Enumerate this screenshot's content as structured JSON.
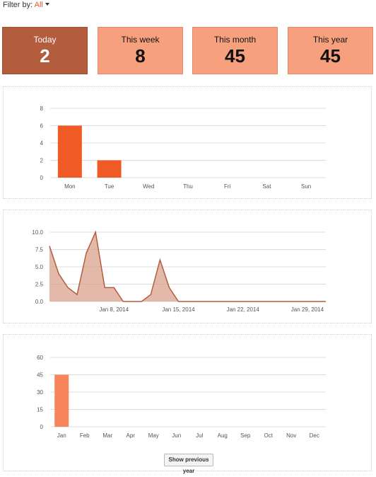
{
  "filter": {
    "label": "Filter by:",
    "value": "All"
  },
  "tiles": [
    {
      "label": "Today",
      "value": "2"
    },
    {
      "label": "This week",
      "value": "8"
    },
    {
      "label": "This month",
      "value": "45"
    },
    {
      "label": "This year",
      "value": "45"
    }
  ],
  "colors": {
    "active_tile": "#b35c3e",
    "tile": "#f7a07e",
    "week_bar": "#f05a24",
    "month_area": "#b35c3e",
    "year_bar": "#f7845a"
  },
  "button_label": "Show previous year",
  "chart_data": [
    {
      "type": "bar",
      "categories": [
        "Mon",
        "Tue",
        "Wed",
        "Thu",
        "Fri",
        "Sat",
        "Sun"
      ],
      "values": [
        6,
        2,
        0,
        0,
        0,
        0,
        0
      ],
      "yticks": [
        0,
        2,
        4,
        6,
        8
      ],
      "ylim": [
        0,
        8
      ],
      "grid": true
    },
    {
      "type": "area",
      "x_start": "Jan 1, 2014",
      "values": [
        8,
        4,
        2,
        1,
        7,
        10,
        2,
        2,
        0,
        0,
        0,
        1,
        6,
        2,
        0,
        0,
        0,
        0,
        0,
        0,
        0,
        0,
        0,
        0,
        0,
        0,
        0,
        0,
        0,
        0,
        0
      ],
      "xtick_labels": [
        "Jan 8, 2014",
        "Jan 15, 2014",
        "Jan 22, 2014",
        "Jan 29, 2014"
      ],
      "yticks": [
        "0.0",
        "2.5",
        "5.0",
        "7.5",
        "10.0"
      ],
      "ylim": [
        0,
        10
      ],
      "grid": true
    },
    {
      "type": "bar",
      "categories": [
        "Jan",
        "Feb",
        "Mar",
        "Apr",
        "May",
        "Jun",
        "Jul",
        "Aug",
        "Sep",
        "Oct",
        "Nov",
        "Dec"
      ],
      "values": [
        45,
        0,
        0,
        0,
        0,
        0,
        0,
        0,
        0,
        0,
        0,
        0
      ],
      "yticks": [
        0,
        15,
        30,
        45,
        60
      ],
      "ylim": [
        0,
        60
      ],
      "grid": true
    }
  ]
}
